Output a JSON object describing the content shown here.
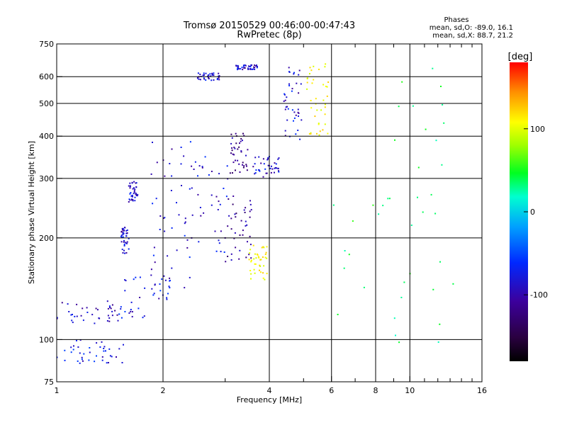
{
  "chart_data": {
    "type": "scatter",
    "title": "Tromsø 20150529 00:46:00-00:47:43",
    "subtitle": "RwPretec (8p)",
    "xlabel": "Frequency [MHz]",
    "ylabel": "Stationary phase Virtual Height [km]",
    "x_scale": "log",
    "y_scale": "log",
    "xlim": [
      1,
      16
    ],
    "ylim": [
      75,
      750
    ],
    "x_ticks": [
      1,
      2,
      4,
      6,
      8,
      10,
      16
    ],
    "x_tick_labels": [
      "1",
      "2",
      "4",
      "6",
      "8",
      "10",
      "16"
    ],
    "x_minor_ticks": [
      3,
      5,
      7,
      9,
      11,
      12,
      13,
      14,
      15
    ],
    "y_ticks": [
      75,
      100,
      200,
      300,
      400,
      500,
      600,
      750
    ],
    "y_tick_labels": [
      "75",
      "100",
      "200",
      "300",
      "400",
      "500",
      "600",
      "750"
    ],
    "grid": true,
    "stats": {
      "title": "Phases",
      "line_o": "mean, sd,O: -89.0, 16.1",
      "line_x": "mean, sd,X: 88.7, 21.2"
    },
    "colorbar": {
      "label": "[deg]",
      "range": [
        -180,
        180
      ],
      "ticks": [
        100,
        0,
        -100
      ],
      "tick_labels": [
        "100",
        "0",
        "-100"
      ],
      "colormap": "rainbow (black-purple-blue-cyan-green-yellow-red)"
    },
    "series": [
      {
        "x_range": [
          1.0,
          1.52
        ],
        "y_range": [
          110,
          130
        ],
        "phase": -100
      },
      {
        "x_range": [
          1.0,
          1.55
        ],
        "y_range": [
          85,
          100
        ],
        "phase": -90
      },
      {
        "x_range": [
          1.5,
          2.1
        ],
        "y_range": [
          115,
          160
        ],
        "phase": -90
      },
      {
        "x_range": [
          1.85,
          2.45
        ],
        "y_range": [
          140,
          400
        ],
        "phase": -95
      },
      {
        "x_range": [
          2.3,
          3.05
        ],
        "y_range": [
          180,
          350
        ],
        "phase": -95
      },
      {
        "x_range": [
          3.0,
          3.6
        ],
        "y_range": [
          170,
          270
        ],
        "phase": -115
      },
      {
        "x_range": [
          3.1,
          3.5
        ],
        "y_range": [
          310,
          420
        ],
        "phase": -115
      },
      {
        "x_range": [
          3.5,
          3.95
        ],
        "y_range": [
          150,
          190
        ],
        "phase": 100
      },
      {
        "x_range": [
          3.6,
          4.3
        ],
        "y_range": [
          300,
          350
        ],
        "phase": -95
      },
      {
        "x_range": [
          4.4,
          4.95
        ],
        "y_range": [
          390,
          650
        ],
        "phase": -95
      },
      {
        "x_range": [
          5.1,
          5.9
        ],
        "y_range": [
          400,
          660
        ],
        "phase": 100
      },
      {
        "x_range": [
          1.52,
          1.6
        ],
        "y_range": [
          180,
          215
        ],
        "phase": -95
      },
      {
        "x_range": [
          1.6,
          1.7
        ],
        "y_range": [
          255,
          295
        ],
        "phase": -95
      },
      {
        "x_range": [
          3.2,
          3.7
        ],
        "y_range": [
          630,
          650
        ],
        "phase": -95
      },
      {
        "x_range": [
          2.5,
          2.9
        ],
        "y_range": [
          585,
          615
        ],
        "phase": -95
      },
      {
        "x_range": [
          6.0,
          13.5
        ],
        "y_range": [
          95,
          650
        ],
        "phase": 20
      }
    ]
  }
}
